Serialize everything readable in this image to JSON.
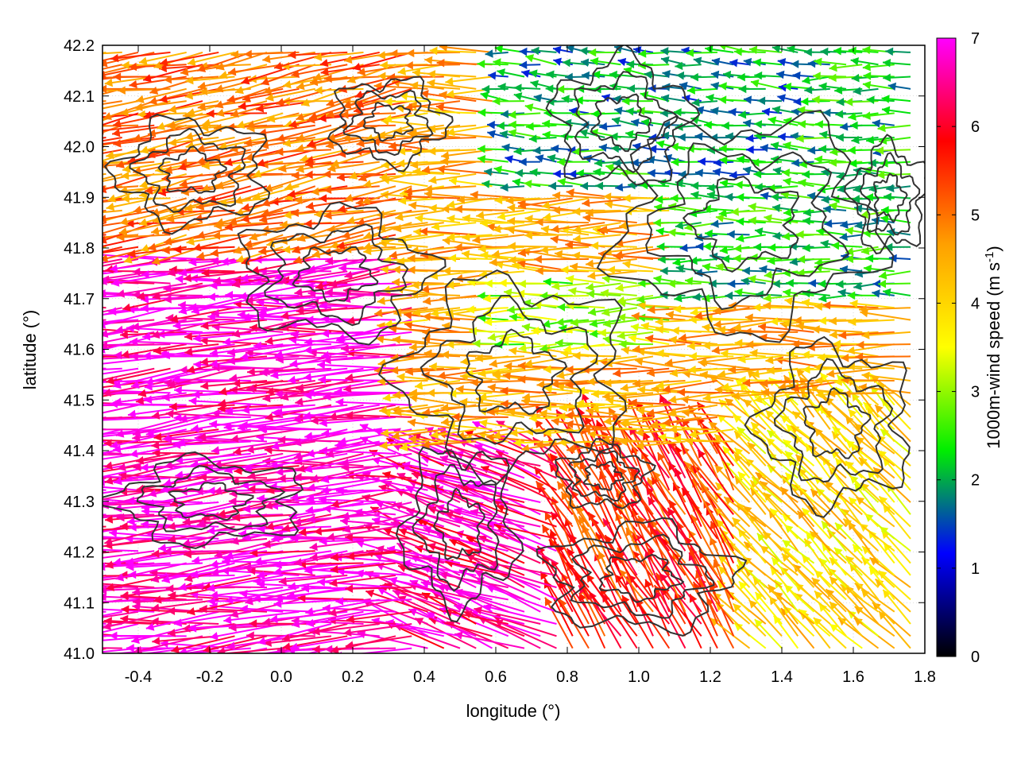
{
  "chart_data": {
    "type": "quiver",
    "title": "",
    "xlabel": "longitude (°)",
    "ylabel": "latitude (°)",
    "xlim": [
      -0.5,
      1.8
    ],
    "ylim": [
      41.0,
      42.2
    ],
    "x_ticks": [
      -0.4,
      -0.2,
      0.0,
      0.2,
      0.4,
      0.6,
      0.8,
      1.0,
      1.2,
      1.4,
      1.6,
      1.8
    ],
    "x_tick_labels": [
      "-0.4",
      "-0.2",
      "0.0",
      "0.2",
      "0.4",
      "0.6",
      "0.8",
      "1.0",
      "1.2",
      "1.4",
      "1.6",
      "1.8"
    ],
    "y_ticks": [
      41.0,
      41.1,
      41.2,
      41.3,
      41.4,
      41.5,
      41.6,
      41.7,
      41.8,
      41.9,
      42.0,
      42.1,
      42.2
    ],
    "y_tick_labels": [
      "41.0",
      "41.1",
      "41.2",
      "41.3",
      "41.4",
      "41.5",
      "41.6",
      "41.7",
      "41.8",
      "41.9",
      "42.0",
      "42.1",
      "42.2"
    ],
    "grid": true,
    "colorbar": {
      "label_prefix": "1000m-wind speed (m s",
      "label_exponent": "-1",
      "label_suffix": ")",
      "range": [
        0,
        7
      ],
      "ticks": [
        0,
        1,
        2,
        3,
        4,
        5,
        6,
        7
      ],
      "tick_labels": [
        "0",
        "1",
        "2",
        "3",
        "4",
        "5",
        "6",
        "7"
      ],
      "colors": [
        "#000000",
        "#0000ff",
        "#00ee00",
        "#ffff00",
        "#ffa000",
        "#ff0000",
        "#ff00ff"
      ]
    },
    "wind_regions": [
      {
        "lon_range": [
          -0.5,
          0.6
        ],
        "lat_range": [
          41.0,
          41.8
        ],
        "speed": 6.8,
        "direction_deg": 185
      },
      {
        "lon_range": [
          -0.5,
          0.4
        ],
        "lat_range": [
          41.8,
          42.2
        ],
        "speed": 5.0,
        "direction_deg": 190
      },
      {
        "lon_range": [
          0.4,
          1.1
        ],
        "lat_range": [
          41.4,
          41.9
        ],
        "speed": 4.5,
        "direction_deg": 180
      },
      {
        "lon_range": [
          0.6,
          1.1
        ],
        "lat_range": [
          41.6,
          41.75
        ],
        "speed": 3.0,
        "direction_deg": 180
      },
      {
        "lon_range": [
          1.1,
          1.8
        ],
        "lat_range": [
          41.7,
          42.2
        ],
        "speed": 2.2,
        "direction_deg": 180
      },
      {
        "lon_range": [
          0.6,
          1.5
        ],
        "lat_range": [
          41.9,
          42.2
        ],
        "speed": 2.0,
        "direction_deg": 175
      },
      {
        "lon_range": [
          0.8,
          1.3
        ],
        "lat_range": [
          41.0,
          41.4
        ],
        "speed": 5.5,
        "direction_deg": 120
      },
      {
        "lon_range": [
          1.3,
          1.8
        ],
        "lat_range": [
          41.0,
          41.5
        ],
        "speed": 4.0,
        "direction_deg": 135
      },
      {
        "lon_range": [
          0.4,
          0.8
        ],
        "lat_range": [
          41.0,
          41.4
        ],
        "speed": 6.5,
        "direction_deg": 160
      }
    ]
  }
}
